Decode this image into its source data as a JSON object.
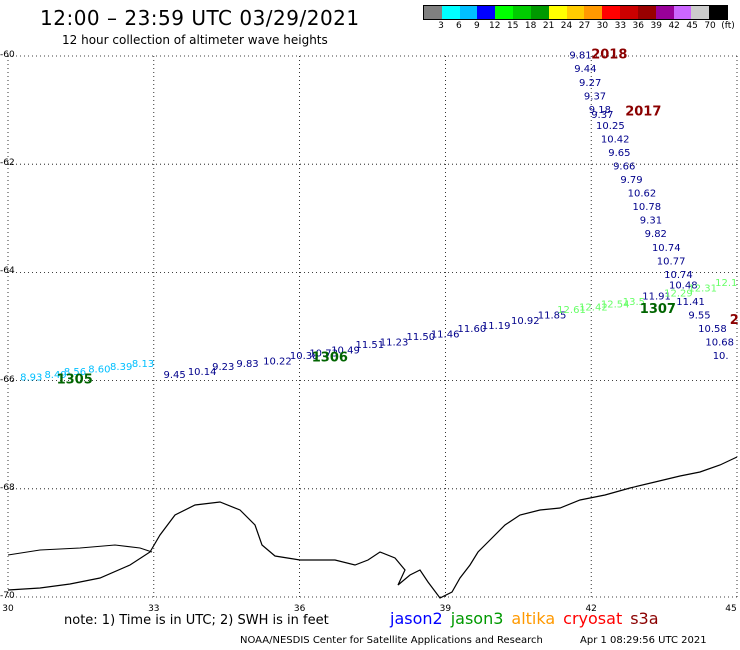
{
  "header": {
    "title": "12:00 – 23:59 UTC 03/29/2021",
    "subtitle": "12 hour collection of altimeter wave heights"
  },
  "colorbar": {
    "colors": [
      "#808080",
      "#00ffff",
      "#00bfff",
      "#0000ff",
      "#00ff00",
      "#00cc00",
      "#009900",
      "#ffff00",
      "#ffcc00",
      "#ff9900",
      "#ff0000",
      "#cc0000",
      "#990000",
      "#990099",
      "#cc66ff",
      "#cccccc",
      "#000000"
    ],
    "labels": [
      "3",
      "6",
      "9",
      "12",
      "15",
      "18",
      "21",
      "24",
      "27",
      "30",
      "33",
      "36",
      "39",
      "42",
      "45",
      "70",
      "(ft)"
    ]
  },
  "axes": {
    "lat_labels": [
      "-60",
      "-62",
      "-64",
      "-66",
      "-68",
      "-70"
    ],
    "lon_labels": [
      "30",
      "33",
      "36",
      "39",
      "42",
      "45"
    ]
  },
  "map_data": {
    "lat_range": [
      -70,
      -60
    ],
    "lon_range": [
      30,
      45
    ],
    "grid": "dotted",
    "tracks": [
      {
        "satellite": "jason2",
        "color": "#00008b",
        "points": [
          {
            "lon": 41.55,
            "lat": -60.05,
            "swh": "9.81"
          },
          {
            "lon": 41.65,
            "lat": -60.3,
            "swh": "9.44"
          },
          {
            "lon": 41.75,
            "lat": -60.55,
            "swh": "9.27"
          },
          {
            "lon": 41.85,
            "lat": -60.8,
            "swh": "9.37"
          },
          {
            "lon": 41.95,
            "lat": -61.05,
            "swh": "9.18"
          },
          {
            "lon": 42.0,
            "lat": -61.15,
            "swh": "9.37"
          },
          {
            "lon": 42.1,
            "lat": -61.35,
            "swh": "10.25"
          },
          {
            "lon": 42.2,
            "lat": -61.6,
            "swh": "10.42"
          },
          {
            "lon": 42.35,
            "lat": -61.85,
            "swh": "9.65"
          },
          {
            "lon": 42.45,
            "lat": -62.1,
            "swh": "9.66"
          },
          {
            "lon": 42.6,
            "lat": -62.35,
            "swh": "9.79"
          },
          {
            "lon": 42.75,
            "lat": -62.6,
            "swh": "10.62"
          },
          {
            "lon": 42.85,
            "lat": -62.85,
            "swh": "10.78"
          },
          {
            "lon": 43.0,
            "lat": -63.1,
            "swh": "9.31"
          },
          {
            "lon": 43.1,
            "lat": -63.35,
            "swh": "9.82"
          },
          {
            "lon": 43.25,
            "lat": -63.6,
            "swh": "10.74"
          },
          {
            "lon": 43.35,
            "lat": -63.85,
            "swh": "10.77"
          },
          {
            "lon": 43.5,
            "lat": -64.1,
            "swh": "10.74"
          },
          {
            "lon": 43.6,
            "lat": -64.3,
            "swh": "10.48"
          },
          {
            "lon": 43.75,
            "lat": -64.6,
            "swh": "11.41"
          },
          {
            "lon": 44.0,
            "lat": -64.85,
            "swh": "9.55"
          },
          {
            "lon": 44.2,
            "lat": -65.1,
            "swh": "10.58"
          },
          {
            "lon": 44.35,
            "lat": -65.35,
            "swh": "10.68"
          },
          {
            "lon": 44.5,
            "lat": -65.6,
            "swh": "10."
          }
        ]
      },
      {
        "satellite": "jason3",
        "color": "#00008b",
        "points": [
          {
            "lon": 33.2,
            "lat": -65.95,
            "swh": "9.45"
          },
          {
            "lon": 33.7,
            "lat": -65.9,
            "swh": "10.14"
          },
          {
            "lon": 34.2,
            "lat": -65.8,
            "swh": "9.23"
          },
          {
            "lon": 34.7,
            "lat": -65.75,
            "swh": "9.83"
          },
          {
            "lon": 35.25,
            "lat": -65.7,
            "swh": "10.22"
          },
          {
            "lon": 35.8,
            "lat": -65.6,
            "swh": "10.38"
          },
          {
            "lon": 36.2,
            "lat": -65.55,
            "swh": "10.73"
          },
          {
            "lon": 36.65,
            "lat": -65.5,
            "swh": "10.49"
          },
          {
            "lon": 37.15,
            "lat": -65.4,
            "swh": "11.51"
          },
          {
            "lon": 37.65,
            "lat": -65.35,
            "swh": "11.23"
          },
          {
            "lon": 38.2,
            "lat": -65.25,
            "swh": "11.50"
          },
          {
            "lon": 38.7,
            "lat": -65.2,
            "swh": "11.46"
          },
          {
            "lon": 39.25,
            "lat": -65.1,
            "swh": "11.60"
          },
          {
            "lon": 39.75,
            "lat": -65.05,
            "swh": "11.19"
          },
          {
            "lon": 40.35,
            "lat": -64.95,
            "swh": "10.92"
          },
          {
            "lon": 40.9,
            "lat": -64.85,
            "swh": "11.85"
          },
          {
            "lon": 43.05,
            "lat": -64.5,
            "swh": "11.91"
          }
        ]
      },
      {
        "satellite": "jason3-west",
        "color": "#00bfff",
        "points": [
          {
            "lon": 30.25,
            "lat": -66.0,
            "swh": "8.93"
          },
          {
            "lon": 30.75,
            "lat": -65.95,
            "swh": "8.49"
          },
          {
            "lon": 31.15,
            "lat": -65.9,
            "swh": "8.56"
          },
          {
            "lon": 31.65,
            "lat": -65.85,
            "swh": "8.60"
          },
          {
            "lon": 32.1,
            "lat": -65.8,
            "swh": "8.39"
          },
          {
            "lon": 32.55,
            "lat": -65.75,
            "swh": "8.13"
          }
        ]
      },
      {
        "satellite": "jason3-east",
        "color": "#66ff66",
        "points": [
          {
            "lon": 41.3,
            "lat": -64.75,
            "swh": "12.61"
          },
          {
            "lon": 41.75,
            "lat": -64.7,
            "swh": "12.42"
          },
          {
            "lon": 42.2,
            "lat": -64.65,
            "swh": "12.54"
          },
          {
            "lon": 42.65,
            "lat": -64.6,
            "swh": "13.5"
          },
          {
            "lon": 43.5,
            "lat": -64.45,
            "swh": "12.29"
          },
          {
            "lon": 44.0,
            "lat": -64.35,
            "swh": "12.31"
          },
          {
            "lon": 44.55,
            "lat": -64.25,
            "swh": "12.1"
          }
        ]
      }
    ],
    "pass_labels": [
      {
        "text": "1305",
        "lon": 31.0,
        "lat": -66.05,
        "color": "#006400"
      },
      {
        "text": "1306",
        "lon": 36.25,
        "lat": -65.65,
        "color": "#006400"
      },
      {
        "text": "1307",
        "lon": 43.0,
        "lat": -64.75,
        "color": "#006400"
      },
      {
        "text": "2018",
        "lon": 42.0,
        "lat": -60.05,
        "color": "#8b0000"
      },
      {
        "text": "2017",
        "lon": 42.7,
        "lat": -61.1,
        "color": "#8b0000"
      },
      {
        "text": "2",
        "lon": 44.85,
        "lat": -64.95,
        "color": "#8b0000"
      }
    ]
  },
  "footer": {
    "note": "note:  1) Time is in UTC;  2) SWH is in feet",
    "satellites": [
      {
        "label": "jason2",
        "color": "#0000ff"
      },
      {
        "label": "jason3",
        "color": "#009900"
      },
      {
        "label": "altika",
        "color": "#ff9900"
      },
      {
        "label": "cryosat",
        "color": "#ff0000"
      },
      {
        "label": "s3a",
        "color": "#8b0000"
      }
    ],
    "credit": "NOAA/NESDIS Center for Satellite Applications and Research",
    "date": "Apr  1 08:29:56 UTC 2021"
  }
}
